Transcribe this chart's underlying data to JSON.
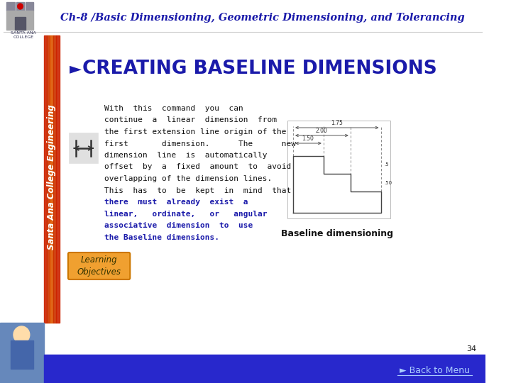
{
  "title": "Ch-8 /Basic Dimensioning, Geometric Dimensioning, and Tolerancing",
  "title_color": "#1a1aaa",
  "heading": "CREATING BASELINE DIMENSIONS",
  "heading_color": "#1a1aaa",
  "body_line1": "With  this  command  you  can",
  "body_line2": "continue  a  linear  dimension  from",
  "body_line3": "the first extension line origin of the",
  "body_line4": "first       dimension.      The      new",
  "body_line5": "dimension  line  is  automatically",
  "body_line6": "offset  by  a  fixed  amount  to  avoid",
  "body_line7": "overlapping of the dimension lines.",
  "body_line8": "This  has  to  be  kept  in  mind  that",
  "bold_line1": "there  must  already  exist  a",
  "bold_line2": "linear,   ordinate,   or   angular",
  "bold_line3": "associative  dimension  to  use",
  "bold_line4": "the Baseline dimensions.",
  "baseline_label": "Baseline dimensioning",
  "learning_btn_text": "Learning\nObjectives",
  "learning_btn_color": "#f0a030",
  "learning_btn_border": "#cc7700",
  "page_num": "34",
  "back_to_menu": "► Back to Menu",
  "footer_bg": "#2828cc",
  "sidebar_bg": "#cc2200",
  "sidebar_text": "Santa Ana College Engineering",
  "bg_color": "#ffffff",
  "text_color": "#111111",
  "bold_color": "#1a1aaa",
  "diag_label_1": "1.75",
  "diag_label_2": "2.00",
  "diag_label_3": "1.50",
  "diag_label_4": ".50",
  "diag_label_5": ".5"
}
